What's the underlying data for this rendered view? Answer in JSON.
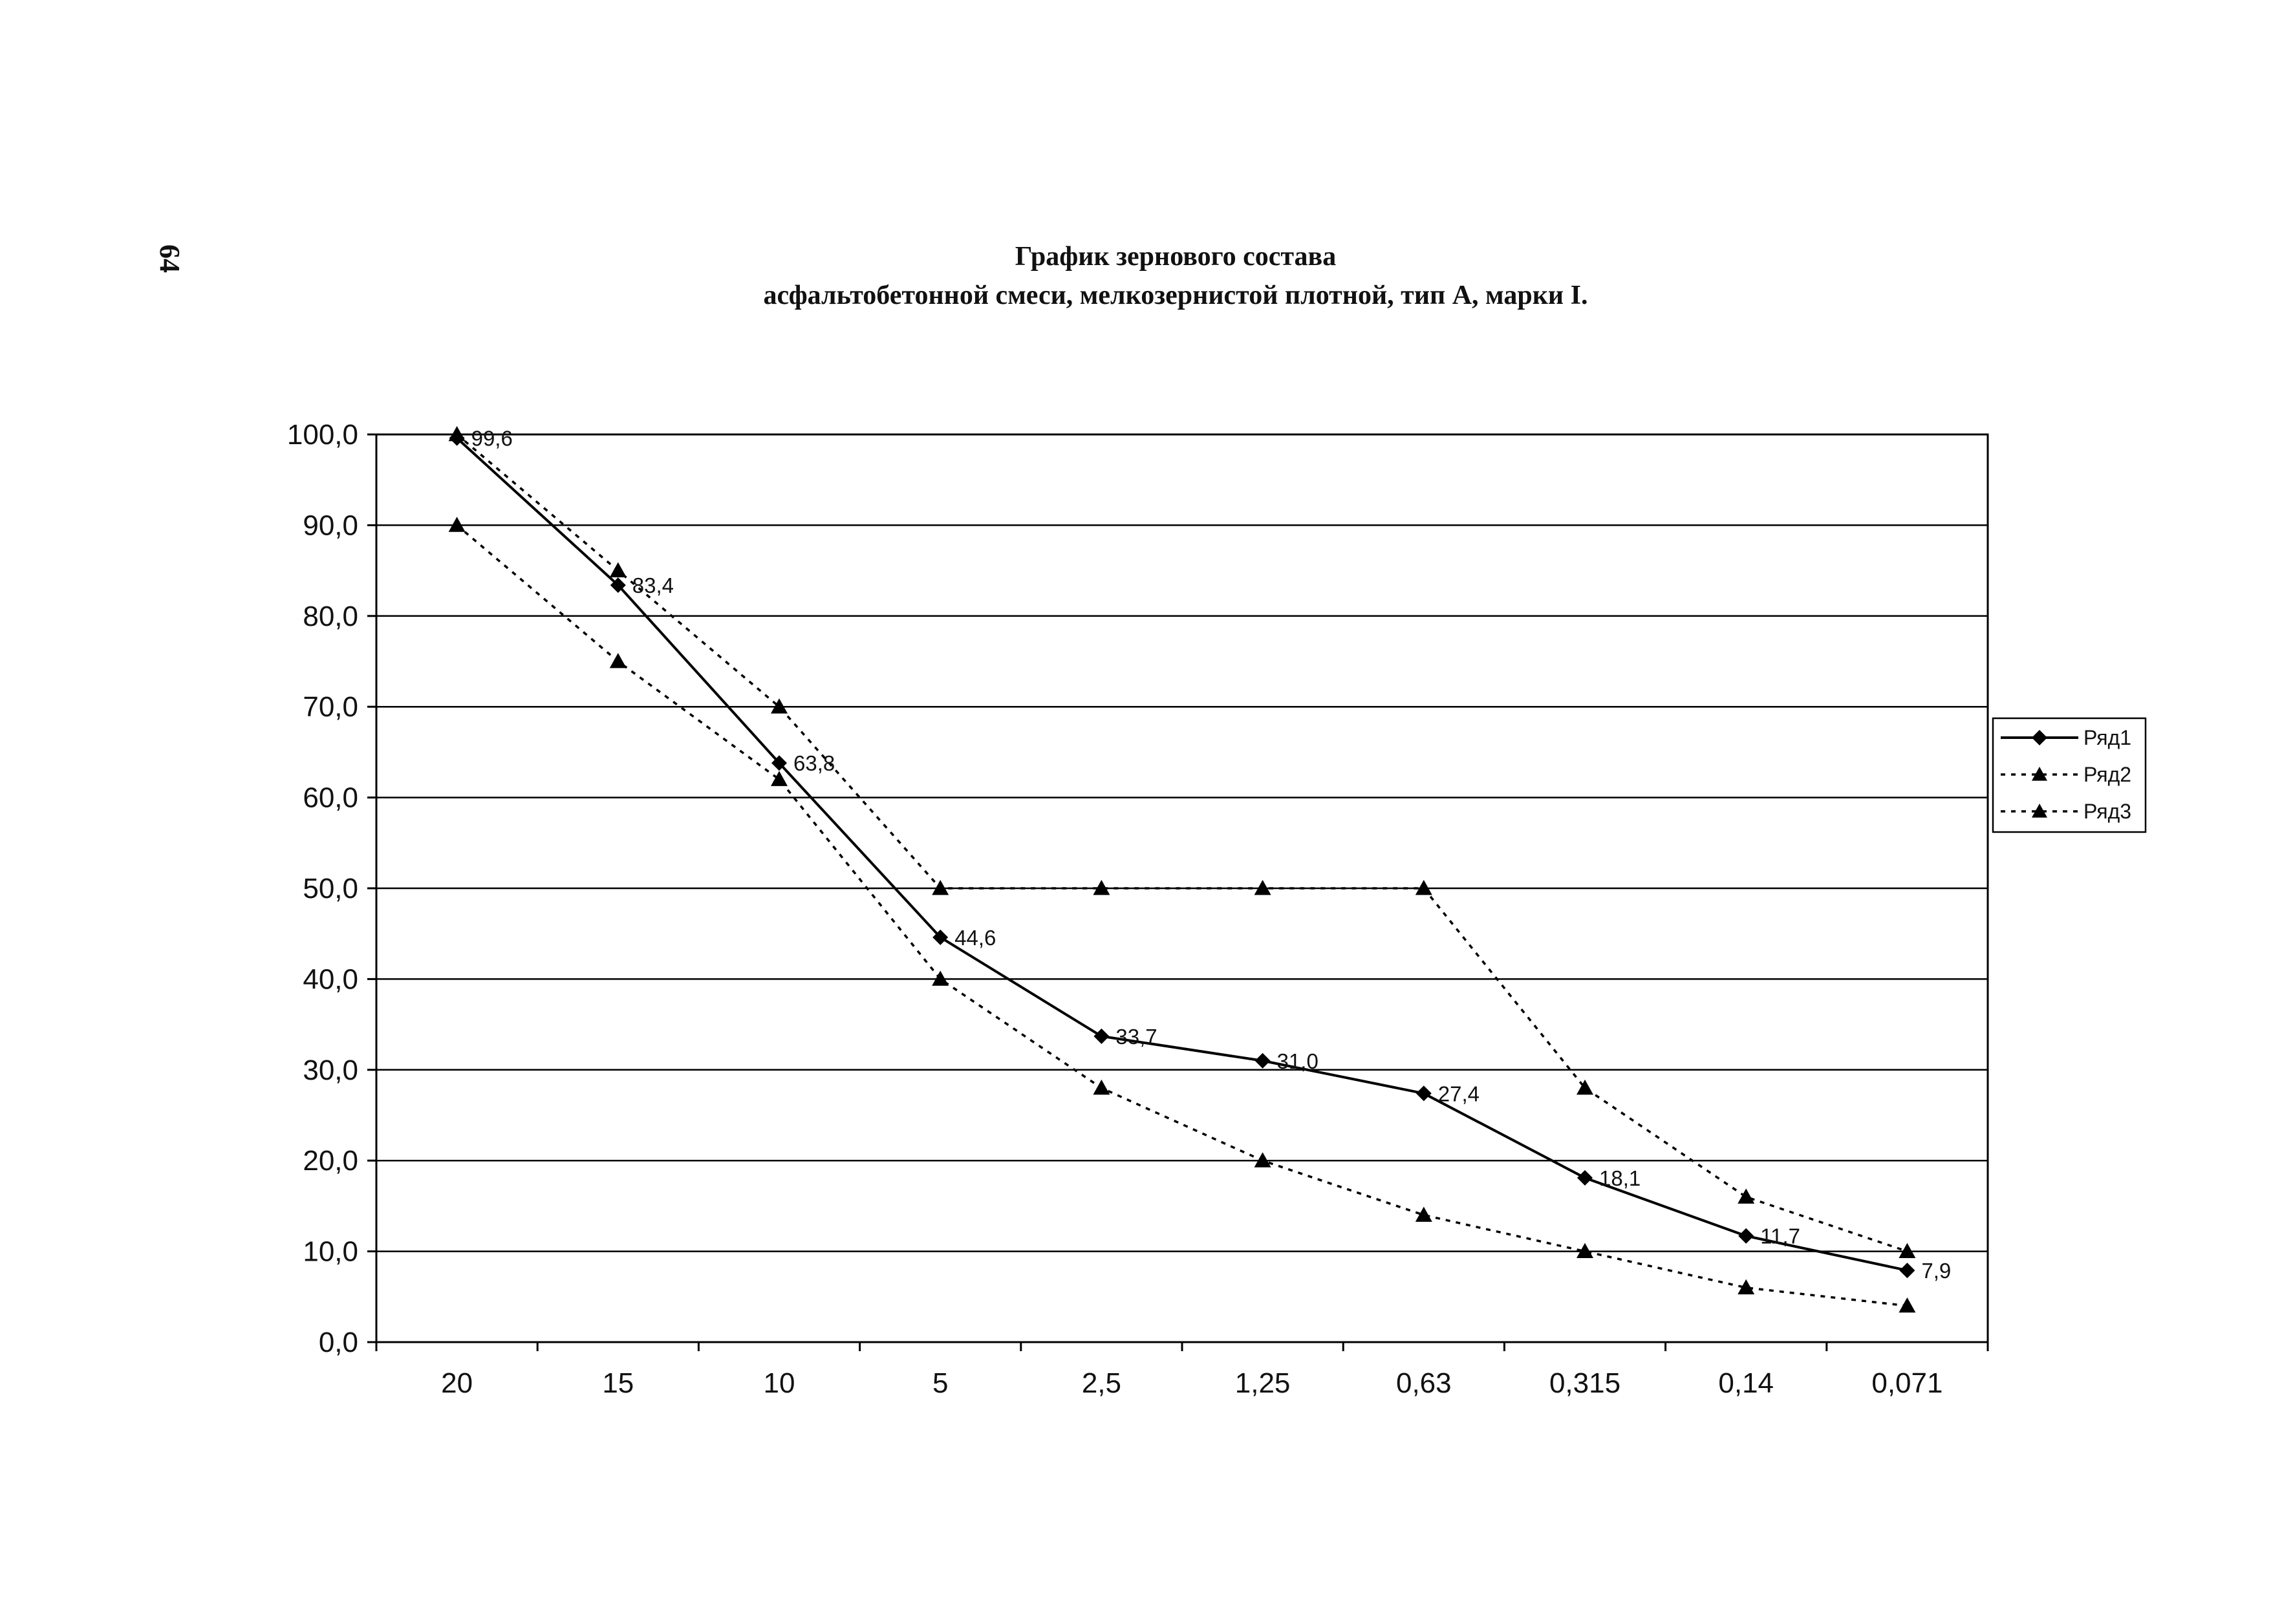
{
  "page_number": "64",
  "chart_data": {
    "type": "line",
    "title": "График зернового состава",
    "subtitle": "асфальтобетонной смеси, мелкозернистой плотной, тип А, марки I.",
    "xlabel": "",
    "ylabel": "",
    "categories": [
      "20",
      "15",
      "10",
      "5",
      "2,5",
      "1,25",
      "0,63",
      "0,315",
      "0,14",
      "0,071"
    ],
    "ylim": [
      0,
      100
    ],
    "yticks": [
      "0,0",
      "10,0",
      "20,0",
      "30,0",
      "40,0",
      "50,0",
      "60,0",
      "70,0",
      "80,0",
      "90,0",
      "100,0"
    ],
    "grid": true,
    "legend_position": "right",
    "series": [
      {
        "name": "Ряд1",
        "values": [
          99.6,
          83.4,
          63.8,
          44.6,
          33.7,
          31.0,
          27.4,
          18.1,
          11.7,
          7.9
        ],
        "labels": [
          "99,6",
          "83,4",
          "63,8",
          "44,6",
          "33,7",
          "31,0",
          "27,4",
          "18,1",
          "11,7",
          "7,9"
        ],
        "marker": "diamond",
        "line": "solid",
        "color": "#000000"
      },
      {
        "name": "Ряд2",
        "values": [
          100,
          85,
          70,
          50,
          50,
          50,
          50,
          28,
          16,
          10
        ],
        "marker": "triangle",
        "line": "dotted",
        "color": "#000000"
      },
      {
        "name": "Ряд3",
        "values": [
          90,
          75,
          62,
          40,
          28,
          20,
          14,
          10,
          6,
          4
        ],
        "marker": "triangle",
        "line": "dotted",
        "color": "#000000"
      }
    ]
  }
}
